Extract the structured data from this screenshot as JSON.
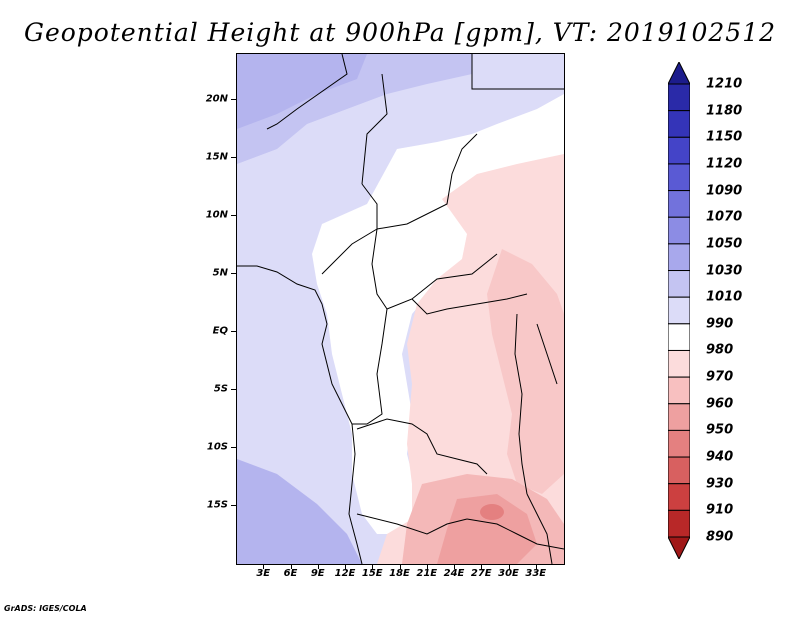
{
  "title": "Geopotential Height at 900hPa [gpm], VT: 2019102512",
  "footer": "GrADS: IGES/COLA",
  "map": {
    "lat_range": [
      -20,
      24
    ],
    "lon_range": [
      0,
      36
    ],
    "lat_labels": [
      {
        "text": "20N",
        "lat": 20
      },
      {
        "text": "15N",
        "lat": 15
      },
      {
        "text": "10N",
        "lat": 10
      },
      {
        "text": "5N",
        "lat": 5
      },
      {
        "text": "EQ",
        "lat": 0
      },
      {
        "text": "5S",
        "lat": -5
      },
      {
        "text": "10S",
        "lat": -10
      },
      {
        "text": "15S",
        "lat": -15
      }
    ],
    "lon_labels": [
      {
        "text": "3E",
        "lon": 3
      },
      {
        "text": "6E",
        "lon": 6
      },
      {
        "text": "9E",
        "lon": 9
      },
      {
        "text": "12E",
        "lon": 12
      },
      {
        "text": "15E",
        "lon": 15
      },
      {
        "text": "18E",
        "lon": 18
      },
      {
        "text": "21E",
        "lon": 21
      },
      {
        "text": "24E",
        "lon": 24
      },
      {
        "text": "27E",
        "lon": 27
      },
      {
        "text": "30E",
        "lon": 30
      },
      {
        "text": "33E",
        "lon": 33
      }
    ]
  },
  "colorbar": {
    "levels": [
      "1210",
      "1180",
      "1150",
      "1120",
      "1090",
      "1070",
      "1050",
      "1030",
      "1010",
      "990",
      "980",
      "970",
      "960",
      "950",
      "940",
      "930",
      "910",
      "890"
    ],
    "colors": [
      "#1c1c8c",
      "#2a2aa8",
      "#3434b8",
      "#4444c8",
      "#5a5ad4",
      "#7272dc",
      "#8c8ce4",
      "#a8a8ec",
      "#c4c4f2",
      "#dcdcf8",
      "#ffffff",
      "#fcdcdc",
      "#f8c0c0",
      "#eea0a0",
      "#e48080",
      "#d86060",
      "#cc4040",
      "#b82828",
      "#a01818"
    ]
  }
}
